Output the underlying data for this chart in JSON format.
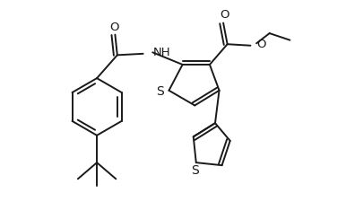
{
  "bg_color": "#ffffff",
  "line_color": "#1a1a1a",
  "lw": 1.4,
  "fig_width": 3.86,
  "fig_height": 2.44,
  "dpi": 100,
  "font_size": 9.5,
  "xlim": [
    -1,
    11
  ],
  "ylim": [
    -0.5,
    7.5
  ]
}
